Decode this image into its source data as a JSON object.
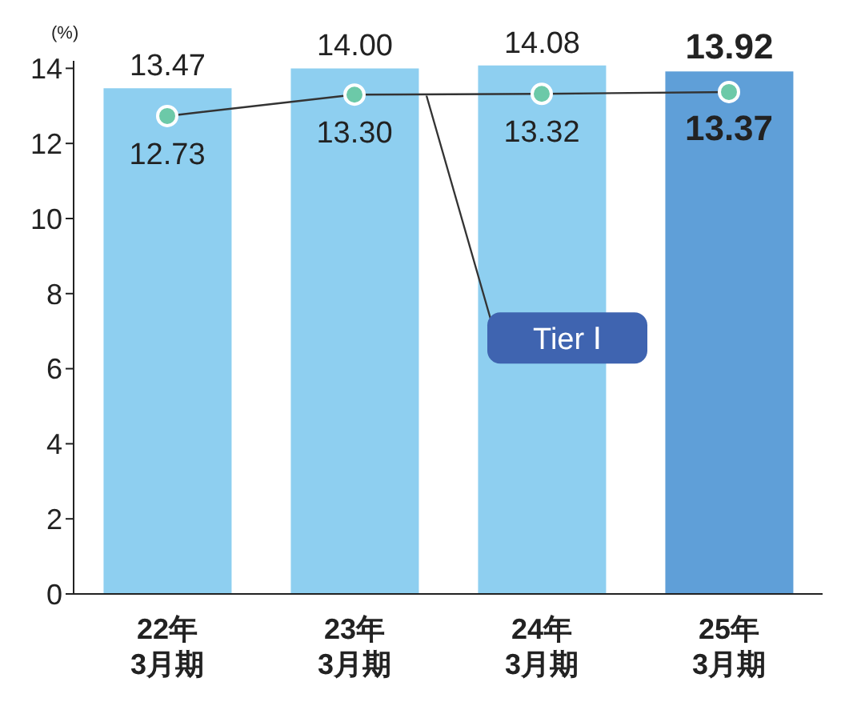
{
  "chart_data": {
    "type": "bar",
    "ylabel": "(%)",
    "categories": [
      "22年\n3月期",
      "23年\n3月期",
      "24年\n3月期",
      "25年\n3月期"
    ],
    "series": [
      {
        "colors": [
          "#8ecff0",
          "#8ecff0",
          "#8ecff0",
          "#5f9fd8"
        ],
        "values": [
          13.47,
          14.0,
          14.08,
          13.92
        ],
        "value_labels": [
          "13.47",
          "14.00",
          "14.08",
          "13.92"
        ]
      },
      {
        "type": "line",
        "name": "Tier Ⅰ",
        "color": "#333333",
        "values": [
          12.73,
          13.3,
          13.32,
          13.37
        ],
        "value_labels": [
          "12.73",
          "13.30",
          "13.32",
          "13.37"
        ],
        "marker": "circle"
      }
    ],
    "ylim": [
      0,
      14.2
    ],
    "yticks": [
      0,
      2,
      4,
      6,
      8,
      10,
      12,
      14
    ]
  }
}
